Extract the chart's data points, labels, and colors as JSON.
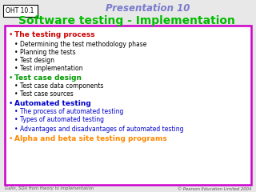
{
  "title1": "Presentation 10",
  "title2": "Software testing - Implementation",
  "oht_label": "OHT 10.1",
  "footer_left": "Galin, SQA from theory to implementation",
  "footer_right": "© Pearson Education Limited 2004",
  "title1_color": "#7B7BCC",
  "title2_color": "#00BB00",
  "oht_color": "#000000",
  "bullet1_color": "#CC0000",
  "bullet2_color": "#009900",
  "bullet3_color": "#0000CC",
  "bullet4_color": "#FF8800",
  "sub_bullet_color": "#000000",
  "sub_bullet_color_blue": "#0000CC",
  "box_border_color": "#CC00CC",
  "bg_color": "#E8E8E8",
  "white": "#FFFFFF",
  "bullet1": "The testing process",
  "sub1": [
    "Determining the test methodology phase",
    "Planning the tests",
    "Test design",
    "Test implementation"
  ],
  "bullet2": "Test case design",
  "sub2": [
    "Test case data components",
    "Test case sources"
  ],
  "bullet3": "Automated testing",
  "sub3": [
    "The process of automated testing",
    "Types of automated testing",
    "Advantages and disadvantages of automated testing"
  ],
  "bullet4": "Alpha and beta site testing programs",
  "fs_main": 6.5,
  "fs_sub": 5.5,
  "fs_title1": 8.5,
  "fs_title2": 10.0,
  "fs_oht": 5.5,
  "fs_footer": 3.8
}
